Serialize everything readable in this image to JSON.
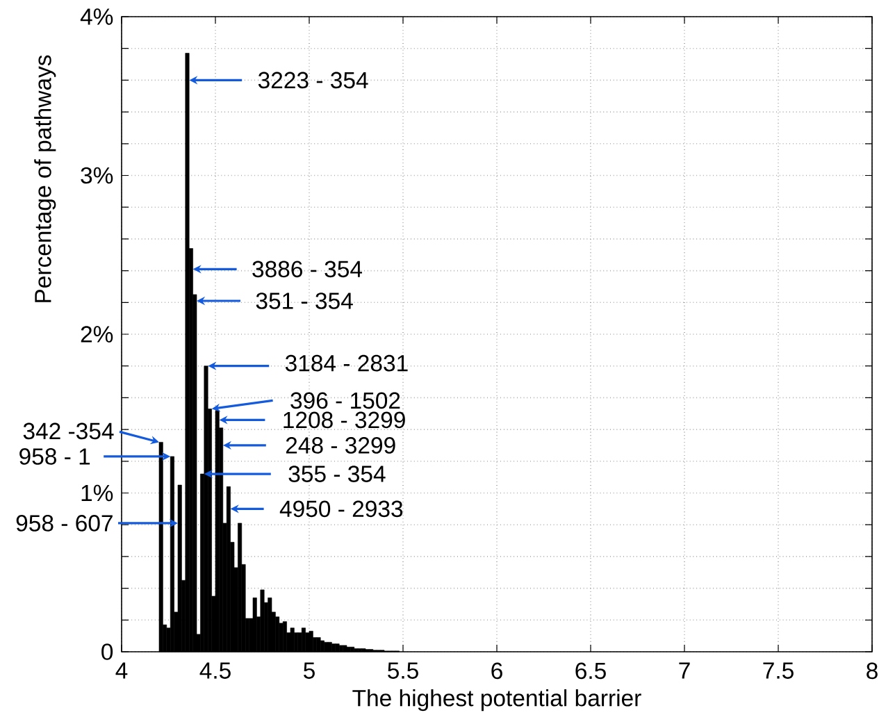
{
  "chart_data": {
    "type": "histogram",
    "xlabel": "The highest potential barrier",
    "ylabel": "Percentage of pathways",
    "bins": [
      4.2,
      4.22,
      4.24,
      4.26,
      4.28,
      4.3,
      4.32,
      4.34,
      4.36,
      4.38,
      4.4,
      4.42,
      4.44,
      4.46,
      4.48,
      4.5,
      4.52,
      4.54,
      4.56,
      4.58,
      4.6,
      4.62,
      4.64,
      4.66,
      4.68,
      4.7,
      4.72,
      4.74,
      4.76,
      4.78,
      4.8,
      4.82,
      4.84,
      4.86,
      4.88,
      4.9,
      4.92,
      4.94,
      4.96,
      4.98,
      5.0,
      5.02,
      5.04,
      5.06,
      5.08,
      5.1,
      5.12,
      5.14,
      5.16,
      5.18,
      5.2,
      5.22,
      5.24,
      5.26,
      5.28,
      5.3,
      5.32,
      5.34,
      5.36,
      5.38,
      5.4,
      5.42,
      5.44,
      5.46,
      5.48
    ],
    "values": [
      1.32,
      0.17,
      0.15,
      1.23,
      0.25,
      1.05,
      0.45,
      3.77,
      2.54,
      2.25,
      0.11,
      1.12,
      1.8,
      1.53,
      0.35,
      1.52,
      1.41,
      0.81,
      1.04,
      0.69,
      0.53,
      0.81,
      0.55,
      0.21,
      0.21,
      0.34,
      0.22,
      0.39,
      0.31,
      0.34,
      0.25,
      0.22,
      0.18,
      0.19,
      0.12,
      0.15,
      0.12,
      0.12,
      0.15,
      0.12,
      0.13,
      0.09,
      0.09,
      0.07,
      0.06,
      0.06,
      0.05,
      0.05,
      0.04,
      0.04,
      0.03,
      0.03,
      0.02,
      0.02,
      0.02,
      0.015,
      0.015,
      0.01,
      0.01,
      0.01,
      0.005,
      0.005,
      0.005,
      0.005
    ],
    "color": "#000000",
    "xlim": [
      4,
      8
    ],
    "ylim": [
      0,
      4
    ],
    "xticks": [
      4,
      4.5,
      5,
      5.5,
      6,
      6.5,
      7,
      7.5,
      8
    ],
    "yticks": [
      {
        "value": 0,
        "label": "0"
      },
      {
        "value": 0.2,
        "label": null
      },
      {
        "value": 0.4,
        "label": null
      },
      {
        "value": 0.6,
        "label": null
      },
      {
        "value": 0.8,
        "label": null
      },
      {
        "value": 1,
        "label": "1%"
      },
      {
        "value": 1.2,
        "label": null
      },
      {
        "value": 1.4,
        "label": null
      },
      {
        "value": 1.6,
        "label": null
      },
      {
        "value": 1.8,
        "label": null
      },
      {
        "value": 2,
        "label": "2%"
      },
      {
        "value": 2.2,
        "label": null
      },
      {
        "value": 2.4,
        "label": null
      },
      {
        "value": 2.6,
        "label": null
      },
      {
        "value": 2.8,
        "label": null
      },
      {
        "value": 3,
        "label": "3%"
      },
      {
        "value": 3.2,
        "label": null
      },
      {
        "value": 3.4,
        "label": null
      },
      {
        "value": 3.6,
        "label": null
      },
      {
        "value": 3.8,
        "label": null
      },
      {
        "value": 4,
        "label": "4%"
      }
    ],
    "grid": true,
    "annotations": [
      {
        "text": "3223 - 354",
        "x": 4.36,
        "y": 3.6
      },
      {
        "text": "3886 - 354",
        "x": 4.38,
        "y": 2.41
      },
      {
        "text": "351 - 354",
        "x": 4.4,
        "y": 2.21
      },
      {
        "text": "3184 - 2831",
        "x": 4.46,
        "y": 1.8
      },
      {
        "text": "396 - 1502",
        "x": 4.48,
        "y": 1.53
      },
      {
        "text": "1208 - 3299",
        "x": 4.52,
        "y": 1.46
      },
      {
        "text": "248 - 3299",
        "x": 4.54,
        "y": 1.3
      },
      {
        "text": "355 - 354",
        "x": 4.44,
        "y": 1.12
      },
      {
        "text": "4950 - 2933",
        "x": 4.58,
        "y": 0.9
      },
      {
        "text": "342 -354",
        "x": 4.2,
        "y": 1.32
      },
      {
        "text": "958 - 1",
        "x": 4.26,
        "y": 1.23
      },
      {
        "text": "958 - 607",
        "x": 4.3,
        "y": 0.81
      }
    ]
  }
}
